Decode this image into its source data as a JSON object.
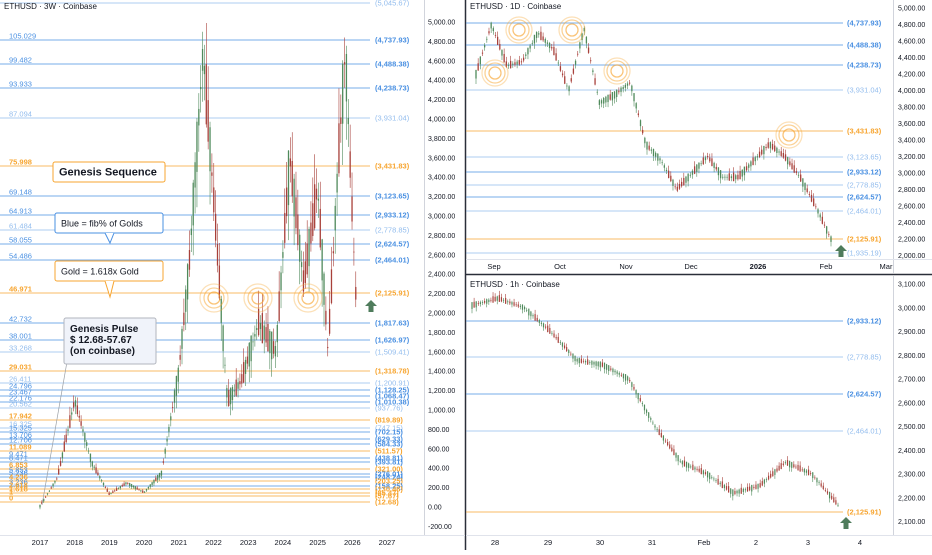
{
  "colors": {
    "blue": "#4a90e2",
    "orange": "#f7a530",
    "bull": "#4f8a5b",
    "bear": "#a8403a",
    "divider": "#2a2e39",
    "axis_text": "#131722",
    "arrow": "#4f7c5c"
  },
  "panels": {
    "weekly": {
      "title": "ETHUSD · 3W · Coinbase",
      "x_labels": [
        "2017",
        "2018",
        "2019",
        "2020",
        "2021",
        "2022",
        "2023",
        "2024",
        "2025",
        "2026",
        "2027"
      ],
      "price_labels": [
        "5,000.00",
        "4,800.00",
        "4,600.00",
        "4,400.00",
        "4,200.00",
        "4,000.00",
        "3,800.00",
        "3,600.00",
        "3,400.00",
        "3,200.00",
        "3,000.00",
        "2,800.00",
        "2,600.00",
        "2,400.00",
        "2,200.00",
        "2,000.00",
        "1,800.00",
        "1,600.00",
        "1,400.00",
        "1,200.00",
        "1,000.00",
        "800.00",
        "600.00",
        "400.00",
        "200.00",
        "0.00",
        "-200.00"
      ],
      "annotations": {
        "genesis_sequence": "Genesis Sequence",
        "blue_note": "Blue = fib% of Golds",
        "gold_note": "Gold = 1.618x Gold",
        "genesis_pulse": [
          "Genesis Pulse",
          "$ 12.68-57.67",
          "(on coinbase)"
        ]
      },
      "levels": [
        {
          "left": "",
          "right": "(5,045.67)",
          "color": "blue",
          "faint": true
        },
        {
          "left": "105.029",
          "right": "(4,737.93)",
          "color": "blue"
        },
        {
          "left": "99.482",
          "right": "(4,488.38)",
          "color": "blue"
        },
        {
          "left": "93.933",
          "right": "(4,238.73)",
          "color": "blue"
        },
        {
          "left": "87.094",
          "right": "(3,931.04)",
          "color": "blue",
          "faint": true
        },
        {
          "left": "75.998",
          "right": "(3,431.83)",
          "color": "orange"
        },
        {
          "left": "69.148",
          "right": "(3,123.65)",
          "color": "blue"
        },
        {
          "left": "64.913",
          "right": "(2,933.12)",
          "color": "blue"
        },
        {
          "left": "61.484",
          "right": "(2,778.85)",
          "color": "blue",
          "faint": true
        },
        {
          "left": "58.055",
          "right": "(2,624.57)",
          "color": "blue"
        },
        {
          "left": "54.486",
          "right": "(2,464.01)",
          "color": "blue"
        },
        {
          "left": "46.971",
          "right": "(2,125.91)",
          "color": "orange"
        },
        {
          "left": "42.732",
          "right": "(1,817.63)",
          "color": "blue"
        },
        {
          "left": "38.001",
          "right": "(1,626.97)",
          "color": "blue"
        },
        {
          "left": "33.268",
          "right": "(1,509.41)",
          "color": "blue",
          "faint": true
        },
        {
          "left": "29.031",
          "right": "(1,318.78)",
          "color": "orange"
        },
        {
          "left": "26.411",
          "right": "(1,200.91)",
          "color": "blue",
          "faint": true
        },
        {
          "left": "24.796",
          "right": "(1,128.25)",
          "color": "blue"
        },
        {
          "left": "23.467",
          "right": "(1,068.47)",
          "color": "blue"
        },
        {
          "left": "22.176",
          "right": "(1,010.38)",
          "color": "blue"
        },
        {
          "left": "20.562",
          "right": "(937.76)",
          "color": "blue",
          "faint": true
        },
        {
          "left": "17.942",
          "right": "(819.89)",
          "color": "orange"
        },
        {
          "left": "16.325",
          "right": "(747.15)",
          "color": "blue",
          "faint": true
        },
        {
          "left": "15.325",
          "right": "(702.15)",
          "color": "blue"
        },
        {
          "left": "13.706",
          "right": "(629.33)",
          "color": "blue"
        },
        {
          "left": "12.706",
          "right": "(584.33)",
          "color": "blue"
        },
        {
          "left": "11.089",
          "right": "(511.57)",
          "color": "orange"
        },
        {
          "left": "9.471",
          "right": "(438.81)",
          "color": "blue"
        },
        {
          "left": "8.471",
          "right": "(393.81)",
          "color": "blue"
        },
        {
          "left": "6.853",
          "right": "(321.00)",
          "color": "orange"
        },
        {
          "left": "5.853",
          "right": "(276.01)",
          "color": "blue"
        },
        {
          "left": "5.236",
          "right": "(248.24)",
          "color": "blue"
        },
        {
          "left": "4.236",
          "right": "(203.25)",
          "color": "orange"
        },
        {
          "left": "3.236",
          "right": "(158.25)",
          "color": "blue"
        },
        {
          "left": "2.618",
          "right": "(130.46)",
          "color": "orange"
        },
        {
          "left": "1.618",
          "right": "(85.47)",
          "color": "orange"
        },
        {
          "left": "1",
          "right": "(57.67)",
          "color": "orange"
        },
        {
          "left": "0",
          "right": "(12.68)",
          "color": "orange"
        }
      ]
    },
    "daily": {
      "title": "ETHUSD · 1D · Coinbase",
      "x_labels": [
        "Sep",
        "Oct",
        "Nov",
        "Dec",
        "2026",
        "Feb",
        "Mar"
      ],
      "price_labels": [
        "5,000.00",
        "4,800.00",
        "4,600.00",
        "4,400.00",
        "4,200.00",
        "4,000.00",
        "3,800.00",
        "3,600.00",
        "3,400.00",
        "3,200.00",
        "3,000.00",
        "2,800.00",
        "2,600.00",
        "2,400.00",
        "2,200.00",
        "2,000.00"
      ],
      "levels": [
        {
          "right": "(4,737.93)",
          "color": "blue"
        },
        {
          "right": "(4,488.38)",
          "color": "blue"
        },
        {
          "right": "(4,238.73)",
          "color": "blue"
        },
        {
          "right": "(3,931.04)",
          "color": "blue",
          "faint": true
        },
        {
          "right": "(3,431.83)",
          "color": "orange"
        },
        {
          "right": "(3,123.65)",
          "color": "blue",
          "faint": true
        },
        {
          "right": "(2,933.12)",
          "color": "blue"
        },
        {
          "right": "(2,778.85)",
          "color": "blue",
          "faint": true
        },
        {
          "right": "(2,624.57)",
          "color": "blue"
        },
        {
          "right": "(2,464.01)",
          "color": "blue",
          "faint": true
        },
        {
          "right": "(2,125.91)",
          "color": "orange"
        },
        {
          "right": "(1,935.19)",
          "color": "blue",
          "faint": true
        }
      ]
    },
    "hourly": {
      "title": "ETHUSD · 1h · Coinbase",
      "x_labels": [
        "28",
        "29",
        "30",
        "31",
        "Feb",
        "2",
        "3",
        "4"
      ],
      "price_labels": [
        "3,100.00",
        "3,000.00",
        "2,900.00",
        "2,800.00",
        "2,700.00",
        "2,600.00",
        "2,500.00",
        "2,400.00",
        "2,300.00",
        "2,200.00",
        "2,100.00"
      ],
      "levels": [
        {
          "right": "(2,933.12)",
          "color": "blue"
        },
        {
          "right": "(2,778.85)",
          "color": "blue",
          "faint": true
        },
        {
          "right": "(2,624.57)",
          "color": "blue"
        },
        {
          "right": "(2,464.01)",
          "color": "blue",
          "faint": true
        },
        {
          "right": "(2,125.91)",
          "color": "orange"
        }
      ]
    }
  },
  "chart_data": [
    {
      "type": "candlestick",
      "title": "ETHUSD · 3W · Coinbase",
      "x_range": [
        "2017",
        "2027"
      ],
      "ylim": [
        -200,
        5100
      ],
      "series": [
        {
          "x": [
            2017.0,
            2017.5,
            2018.0,
            2018.5,
            2019.0,
            2019.5,
            2020.0,
            2020.5,
            2021.0,
            2021.3,
            2021.7,
            2022.0,
            2022.4,
            2022.8,
            2023.3,
            2023.8,
            2024.2,
            2024.6,
            2025.0,
            2025.3,
            2025.6,
            2025.8,
            2026.0,
            2026.1
          ],
          "y": [
            10,
            300,
            1100,
            450,
            130,
            250,
            150,
            350,
            1400,
            2500,
            4700,
            3200,
            1100,
            1300,
            1900,
            1600,
            3600,
            2300,
            3300,
            1600,
            3600,
            4700,
            3000,
            2200
          ]
        }
      ]
    },
    {
      "type": "candlestick",
      "title": "ETHUSD · 1D · Coinbase",
      "x_range": [
        "Sep",
        "Mar"
      ],
      "ylim": [
        1950,
        5050
      ],
      "series": [
        {
          "x": [
            "Aug 20",
            "Aug 25",
            "Sep 1",
            "Sep 8",
            "Sep 13",
            "Sep 20",
            "Sep 27",
            "Oct 6",
            "Oct 11",
            "Oct 20",
            "Oct 27",
            "Nov 4",
            "Nov 13",
            "Nov 21",
            "Dec 1",
            "Dec 9",
            "Dec 18",
            "Dec 26",
            "Jan 6",
            "Jan 14",
            "Jan 20",
            "Jan 26",
            "Jan 31",
            "Feb 3"
          ],
          "y": [
            4200,
            4800,
            4300,
            4350,
            4700,
            4500,
            4000,
            4750,
            3850,
            3950,
            4100,
            3350,
            3150,
            2800,
            3000,
            3200,
            2950,
            2950,
            3150,
            3350,
            3200,
            2950,
            2600,
            2200
          ]
        }
      ]
    },
    {
      "type": "candlestick",
      "title": "ETHUSD · 1h · Coinbase",
      "x_range": [
        "28",
        "4"
      ],
      "ylim": [
        2080,
        3120
      ],
      "series": [
        {
          "x": [
            "28",
            "28.5",
            "29",
            "29.5",
            "30",
            "30.5",
            "31",
            "31.4",
            "31.8",
            "Feb",
            "Feb 1.5",
            "2",
            "2.5",
            "3",
            "3.5"
          ],
          "y": [
            3010,
            3040,
            3000,
            2900,
            2780,
            2760,
            2700,
            2500,
            2350,
            2300,
            2220,
            2250,
            2350,
            2300,
            2170
          ]
        }
      ]
    }
  ]
}
